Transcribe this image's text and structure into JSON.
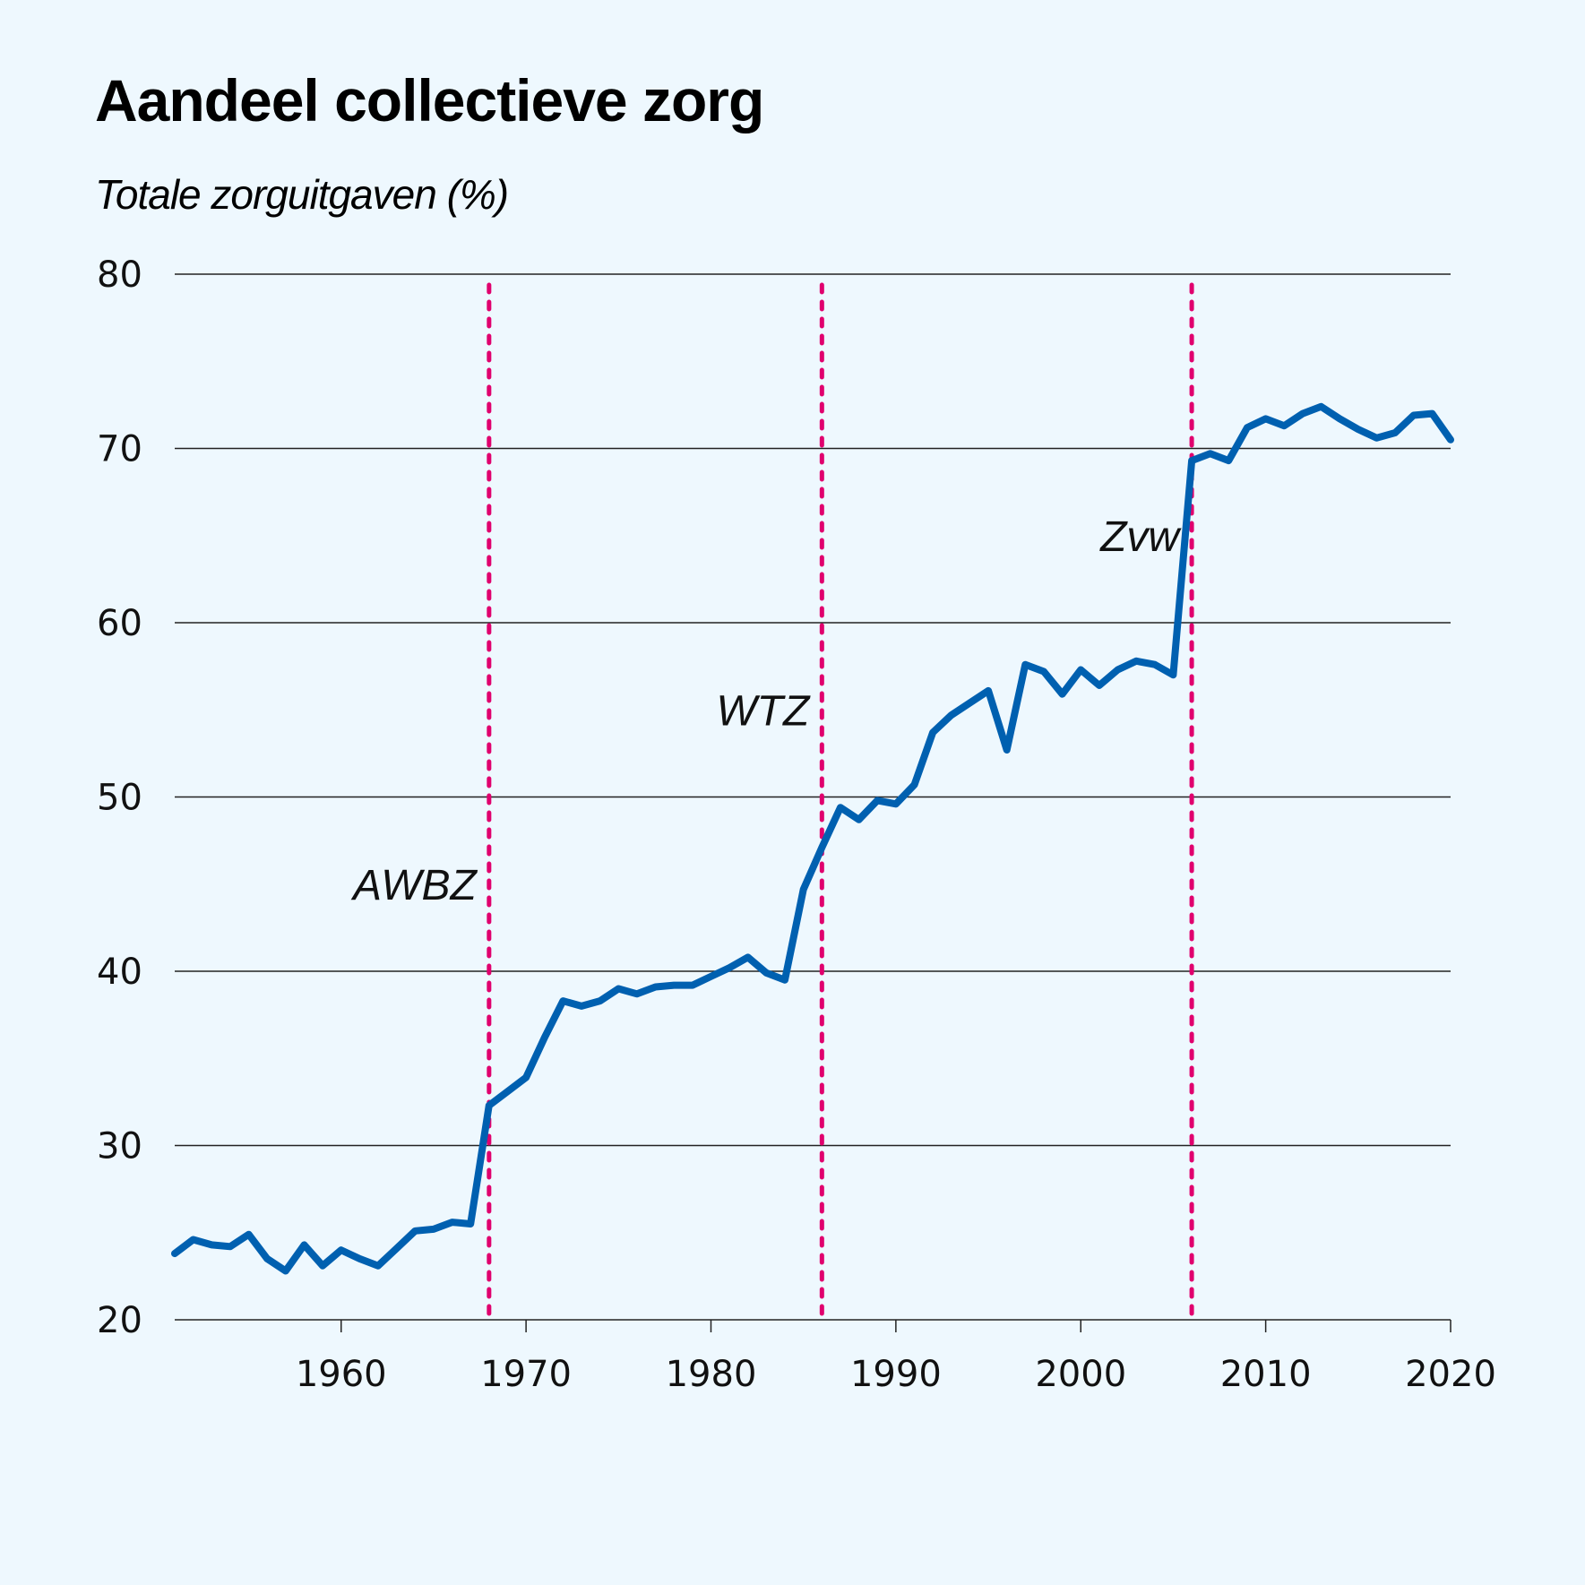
{
  "chart_data": {
    "type": "line",
    "title": "Aandeel collectieve zorg",
    "ylabel": "Totale zorguitgaven (%)",
    "xlabel": "",
    "xlim": [
      1951,
      2020
    ],
    "ylim": [
      20,
      80
    ],
    "x_ticks": [
      1960,
      1970,
      1980,
      1990,
      2000,
      2010,
      2020
    ],
    "y_ticks": [
      20,
      30,
      40,
      50,
      60,
      70,
      80
    ],
    "grid": "horizontal",
    "line_color": "#0060b0",
    "marker_color": "#e0006e",
    "series": [
      {
        "x": [
          1951,
          1952,
          1953,
          1954,
          1955,
          1956,
          1957,
          1958,
          1959,
          1960,
          1961,
          1962,
          1963,
          1964,
          1965,
          1966,
          1967,
          1968,
          1969,
          1970,
          1971,
          1972,
          1973,
          1974,
          1975,
          1976,
          1977,
          1978,
          1979,
          1980,
          1981,
          1982,
          1983,
          1984,
          1985,
          1986,
          1987,
          1988,
          1989,
          1990,
          1991,
          1992,
          1993,
          1994,
          1995,
          1996,
          1997,
          1998,
          1999,
          2000,
          2001,
          2002,
          2003,
          2004,
          2005,
          2006,
          2007,
          2008,
          2009,
          2010,
          2011,
          2012,
          2013,
          2014,
          2015,
          2016,
          2017,
          2018,
          2019,
          2020
        ],
        "values": [
          23.8,
          24.6,
          24.3,
          24.2,
          24.9,
          23.5,
          22.8,
          24.3,
          23.1,
          24.0,
          23.5,
          23.1,
          24.1,
          25.1,
          25.2,
          25.6,
          25.5,
          32.3,
          33.1,
          33.9,
          36.2,
          38.3,
          38.0,
          38.3,
          39.0,
          38.7,
          39.1,
          39.2,
          39.2,
          39.7,
          40.2,
          40.8,
          39.9,
          39.5,
          44.7,
          47.1,
          49.4,
          48.7,
          49.8,
          49.6,
          50.7,
          53.7,
          54.7,
          55.4,
          56.1,
          52.7,
          57.6,
          57.2,
          55.9,
          57.3,
          56.4,
          57.3,
          57.8,
          57.6,
          57.0,
          69.3,
          69.7,
          69.3,
          71.2,
          71.7,
          71.3,
          72.0,
          72.4,
          71.7,
          71.1,
          70.6,
          70.9,
          71.9,
          72.0,
          70.5
        ]
      }
    ],
    "reference_lines": [
      {
        "x": 1968,
        "label": "AWBZ",
        "label_y": 45
      },
      {
        "x": 1986,
        "label": "WTZ",
        "label_y": 55
      },
      {
        "x": 2006,
        "label": "Zvw",
        "label_y": 65
      }
    ]
  }
}
